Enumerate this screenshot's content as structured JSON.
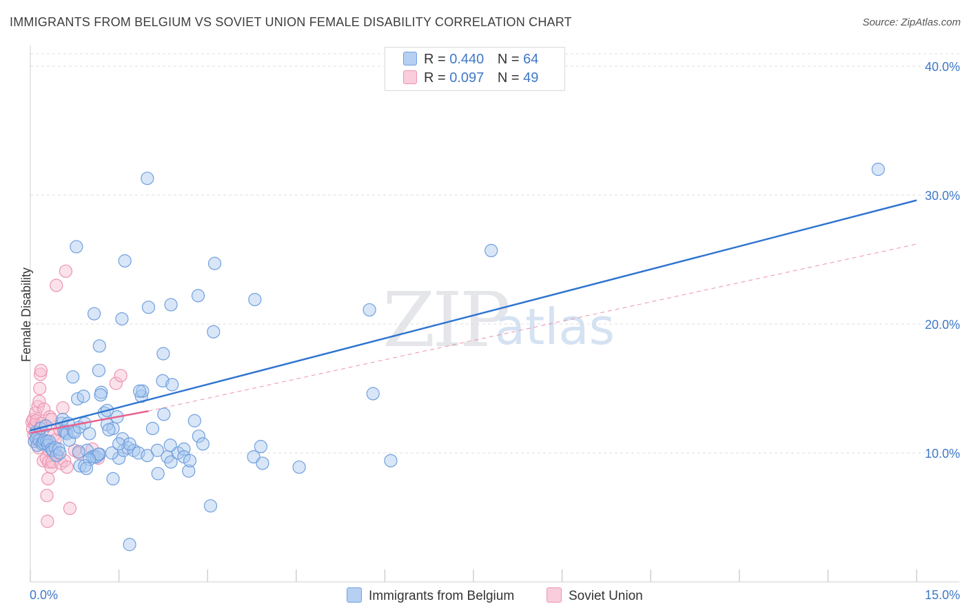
{
  "title": "IMMIGRANTS FROM BELGIUM VS SOVIET UNION FEMALE DISABILITY CORRELATION CHART",
  "source": "Source: ZipAtlas.com",
  "watermark": {
    "zip": "ZIP",
    "atlas": "atlas"
  },
  "legend": {
    "rows": [
      {
        "r_label": "R =",
        "r_value": "0.440",
        "n_label": "N =",
        "n_value": "64"
      },
      {
        "r_label": "R =",
        "r_value": "0.097",
        "n_label": "N =",
        "n_value": "49"
      }
    ]
  },
  "bottom_legend": {
    "series1": "Immigrants from Belgium",
    "series2": "Soviet Union"
  },
  "chart_data": {
    "type": "scatter",
    "title": "IMMIGRANTS FROM BELGIUM VS SOVIET UNION FEMALE DISABILITY CORRELATION CHART",
    "xlabel": "",
    "ylabel": "Female Disability",
    "xlim": [
      0,
      15
    ],
    "ylim": [
      0,
      40
    ],
    "x_tick_labels": [
      "0.0%",
      "15.0%"
    ],
    "y_ticks": [
      10,
      20,
      30,
      40
    ],
    "y_tick_labels": [
      "10.0%",
      "20.0%",
      "30.0%",
      "40.0%"
    ],
    "grid": true,
    "colors": {
      "belgium_fill": "#a9c8f0",
      "belgium_stroke": "#6f9fdc",
      "belgium_line": "#2f74d0",
      "soviet_fill": "#f7bfd1",
      "soviet_stroke": "#ec93b0",
      "soviet_line": "#e8608d",
      "grid": "#dcdcdc"
    },
    "series": [
      {
        "name": "Immigrants from Belgium",
        "r": 0.44,
        "n": 64,
        "trend": {
          "x": [
            0,
            15
          ],
          "y": [
            11.75,
            29.6
          ]
        },
        "points": [
          [
            0.07,
            10.9
          ],
          [
            0.09,
            11.6
          ],
          [
            0.1,
            11.1
          ],
          [
            0.12,
            10.6
          ],
          [
            0.15,
            11.0
          ],
          [
            0.17,
            11.9
          ],
          [
            0.2,
            10.7
          ],
          [
            0.22,
            10.8
          ],
          [
            0.24,
            11.0
          ],
          [
            0.26,
            12.1
          ],
          [
            0.28,
            10.9
          ],
          [
            0.3,
            10.6
          ],
          [
            0.32,
            10.9
          ],
          [
            0.36,
            10.3
          ],
          [
            0.38,
            10.2
          ],
          [
            0.42,
            10.4
          ],
          [
            0.44,
            9.8
          ],
          [
            0.48,
            10.3
          ],
          [
            0.5,
            10.0
          ],
          [
            0.53,
            12.3
          ],
          [
            0.55,
            12.6
          ],
          [
            0.57,
            11.7
          ],
          [
            0.6,
            11.6
          ],
          [
            0.62,
            11.5
          ],
          [
            0.64,
            12.3
          ],
          [
            0.66,
            11.0
          ],
          [
            0.73,
            11.7
          ],
          [
            0.75,
            11.6
          ],
          [
            0.8,
            14.2
          ],
          [
            0.83,
            12.0
          ],
          [
            0.9,
            14.4
          ],
          [
            0.92,
            12.3
          ],
          [
            0.96,
            10.2
          ],
          [
            1.0,
            11.5
          ],
          [
            1.05,
            9.7
          ],
          [
            1.08,
            9.7
          ],
          [
            1.12,
            9.7
          ],
          [
            1.17,
            9.9
          ],
          [
            1.2,
            14.7
          ],
          [
            1.25,
            13.1
          ],
          [
            1.3,
            12.2
          ],
          [
            1.4,
            11.9
          ],
          [
            1.47,
            12.8
          ],
          [
            1.5,
            9.6
          ],
          [
            1.56,
            11.1
          ],
          [
            1.58,
            10.2
          ],
          [
            1.65,
            10.4
          ],
          [
            1.75,
            10.2
          ],
          [
            1.83,
            10.0
          ],
          [
            1.88,
            14.4
          ],
          [
            1.9,
            14.8
          ],
          [
            1.98,
            9.8
          ],
          [
            2.07,
            11.9
          ],
          [
            2.15,
            10.2
          ],
          [
            2.24,
            15.6
          ],
          [
            2.26,
            13.0
          ],
          [
            2.32,
            9.7
          ],
          [
            2.38,
            9.3
          ],
          [
            2.5,
            10.0
          ],
          [
            2.6,
            10.3
          ],
          [
            2.68,
            8.6
          ],
          [
            2.78,
            12.5
          ],
          [
            2.85,
            11.3
          ],
          [
            2.92,
            10.7
          ]
        ],
        "scatter_points": [
          [
            0.72,
            15.9
          ],
          [
            1.16,
            16.4
          ],
          [
            1.19,
            14.5
          ],
          [
            1.3,
            13.3
          ],
          [
            1.33,
            11.8
          ],
          [
            1.38,
            10.0
          ],
          [
            1.5,
            10.7
          ],
          [
            1.08,
            20.8
          ],
          [
            1.17,
            18.3
          ],
          [
            1.55,
            20.4
          ],
          [
            0.78,
            26.0
          ],
          [
            1.6,
            24.9
          ],
          [
            1.98,
            31.3
          ],
          [
            1.85,
            14.8
          ],
          [
            1.68,
            10.7
          ],
          [
            2.0,
            21.3
          ],
          [
            2.25,
            17.7
          ],
          [
            2.38,
            21.5
          ],
          [
            2.4,
            15.3
          ],
          [
            2.37,
            10.6
          ],
          [
            2.6,
            9.7
          ],
          [
            2.7,
            9.4
          ],
          [
            2.84,
            22.2
          ],
          [
            3.12,
            24.7
          ],
          [
            3.1,
            19.4
          ],
          [
            3.05,
            5.9
          ],
          [
            3.8,
            21.9
          ],
          [
            3.78,
            9.7
          ],
          [
            3.9,
            10.5
          ],
          [
            3.93,
            9.2
          ],
          [
            4.55,
            8.9
          ],
          [
            5.74,
            21.1
          ],
          [
            5.8,
            14.6
          ],
          [
            6.1,
            9.4
          ],
          [
            7.8,
            25.7
          ],
          [
            14.35,
            32.0
          ],
          [
            1.68,
            2.9
          ],
          [
            2.16,
            8.4
          ],
          [
            1.4,
            8.0
          ],
          [
            1.15,
            9.9
          ],
          [
            0.84,
            9.0
          ],
          [
            1.0,
            9.5
          ],
          [
            0.92,
            9.0
          ],
          [
            0.95,
            8.8
          ],
          [
            0.82,
            10.1
          ]
        ]
      },
      {
        "name": "Soviet Union",
        "r": 0.097,
        "n": 49,
        "trend": {
          "x": [
            0,
            2.0
          ],
          "y": [
            11.55,
            13.25
          ]
        },
        "trend_dashed": {
          "x": [
            2.0,
            15
          ],
          "y": [
            13.25,
            26.2
          ]
        },
        "points": [
          [
            0.03,
            12.4
          ],
          [
            0.04,
            11.9
          ],
          [
            0.05,
            12.6
          ],
          [
            0.06,
            11.4
          ],
          [
            0.07,
            10.9
          ],
          [
            0.08,
            12.2
          ],
          [
            0.09,
            13.1
          ],
          [
            0.1,
            12.5
          ],
          [
            0.12,
            11.2
          ],
          [
            0.13,
            13.6
          ],
          [
            0.14,
            10.4
          ],
          [
            0.15,
            14.0
          ],
          [
            0.16,
            15.0
          ],
          [
            0.17,
            16.1
          ],
          [
            0.18,
            16.4
          ],
          [
            0.19,
            12.0
          ],
          [
            0.2,
            12.3
          ],
          [
            0.21,
            11.0
          ],
          [
            0.22,
            9.4
          ],
          [
            0.23,
            13.4
          ],
          [
            0.25,
            10.9
          ],
          [
            0.27,
            9.6
          ],
          [
            0.28,
            6.7
          ],
          [
            0.29,
            4.7
          ],
          [
            0.3,
            8.0
          ],
          [
            0.31,
            9.3
          ],
          [
            0.32,
            10.2
          ],
          [
            0.33,
            12.8
          ],
          [
            0.35,
            8.9
          ],
          [
            0.36,
            12.6
          ],
          [
            0.37,
            9.3
          ],
          [
            0.38,
            10.1
          ],
          [
            0.4,
            11.4
          ],
          [
            0.42,
            11.0
          ],
          [
            0.44,
            23.0
          ],
          [
            0.46,
            9.8
          ],
          [
            0.5,
            11.8
          ],
          [
            0.52,
            9.2
          ],
          [
            0.55,
            13.5
          ],
          [
            0.58,
            9.4
          ],
          [
            0.6,
            24.1
          ],
          [
            0.62,
            8.9
          ],
          [
            0.67,
            5.7
          ],
          [
            0.75,
            10.2
          ],
          [
            0.82,
            10.0
          ],
          [
            1.05,
            10.3
          ],
          [
            1.15,
            9.6
          ],
          [
            1.45,
            15.4
          ],
          [
            1.53,
            16.0
          ]
        ]
      }
    ]
  }
}
